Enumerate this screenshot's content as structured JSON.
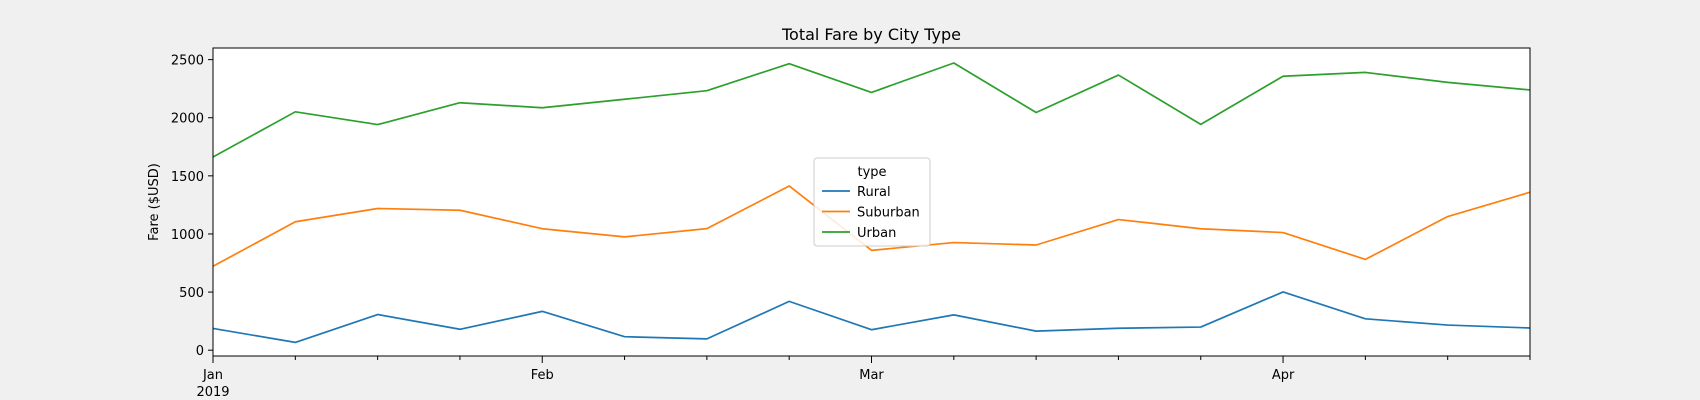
{
  "chart_data": {
    "type": "line",
    "title": "Total Fare by City Type",
    "xlabel": "",
    "ylabel": "Fare ($USD)",
    "x": [
      "2019-01-06",
      "2019-01-13",
      "2019-01-20",
      "2019-01-27",
      "2019-02-03",
      "2019-02-10",
      "2019-02-17",
      "2019-02-24",
      "2019-03-03",
      "2019-03-10",
      "2019-03-17",
      "2019-03-24",
      "2019-03-31",
      "2019-04-07",
      "2019-04-14",
      "2019-04-21",
      "2019-04-28"
    ],
    "xlim": [
      "2019-01-06",
      "2019-04-28"
    ],
    "ylim": [
      -50,
      2600
    ],
    "yticks": [
      0,
      500,
      1000,
      1500,
      2000,
      2500
    ],
    "major_ticks": [
      {
        "date": "2019-01-06",
        "label": "Jan",
        "sublabel": "2019"
      },
      {
        "date": "2019-02-03",
        "label": "Feb",
        "sublabel": ""
      },
      {
        "date": "2019-03-03",
        "label": "Mar",
        "sublabel": ""
      },
      {
        "date": "2019-04-07",
        "label": "Apr",
        "sublabel": ""
      }
    ],
    "minor_ticks": [
      "2019-01-13",
      "2019-01-20",
      "2019-01-27",
      "2019-02-10",
      "2019-02-17",
      "2019-02-24",
      "2019-03-10",
      "2019-03-17",
      "2019-03-24",
      "2019-03-31",
      "2019-04-14",
      "2019-04-21",
      "2019-04-28"
    ],
    "legend": {
      "title": "type",
      "placement": "center"
    },
    "grid": false,
    "series": [
      {
        "name": "Rural",
        "color": "#1f77b4",
        "values": [
          187,
          67,
          307,
          180,
          334,
          116,
          97,
          420,
          176,
          304,
          164,
          189,
          199,
          501,
          270,
          216,
          191
        ]
      },
      {
        "name": "Suburban",
        "color": "#ff7f0e",
        "values": [
          722,
          1105,
          1219,
          1204,
          1045,
          975,
          1046,
          1413,
          859,
          926,
          905,
          1124,
          1045,
          1012,
          781,
          1150,
          1359
        ]
      },
      {
        "name": "Urban",
        "color": "#2ca02c",
        "values": [
          1662,
          2051,
          1941,
          2129,
          2086,
          2159,
          2233,
          2465,
          2218,
          2471,
          2045,
          2367,
          1943,
          2357,
          2390,
          2304,
          2239
        ]
      }
    ]
  }
}
